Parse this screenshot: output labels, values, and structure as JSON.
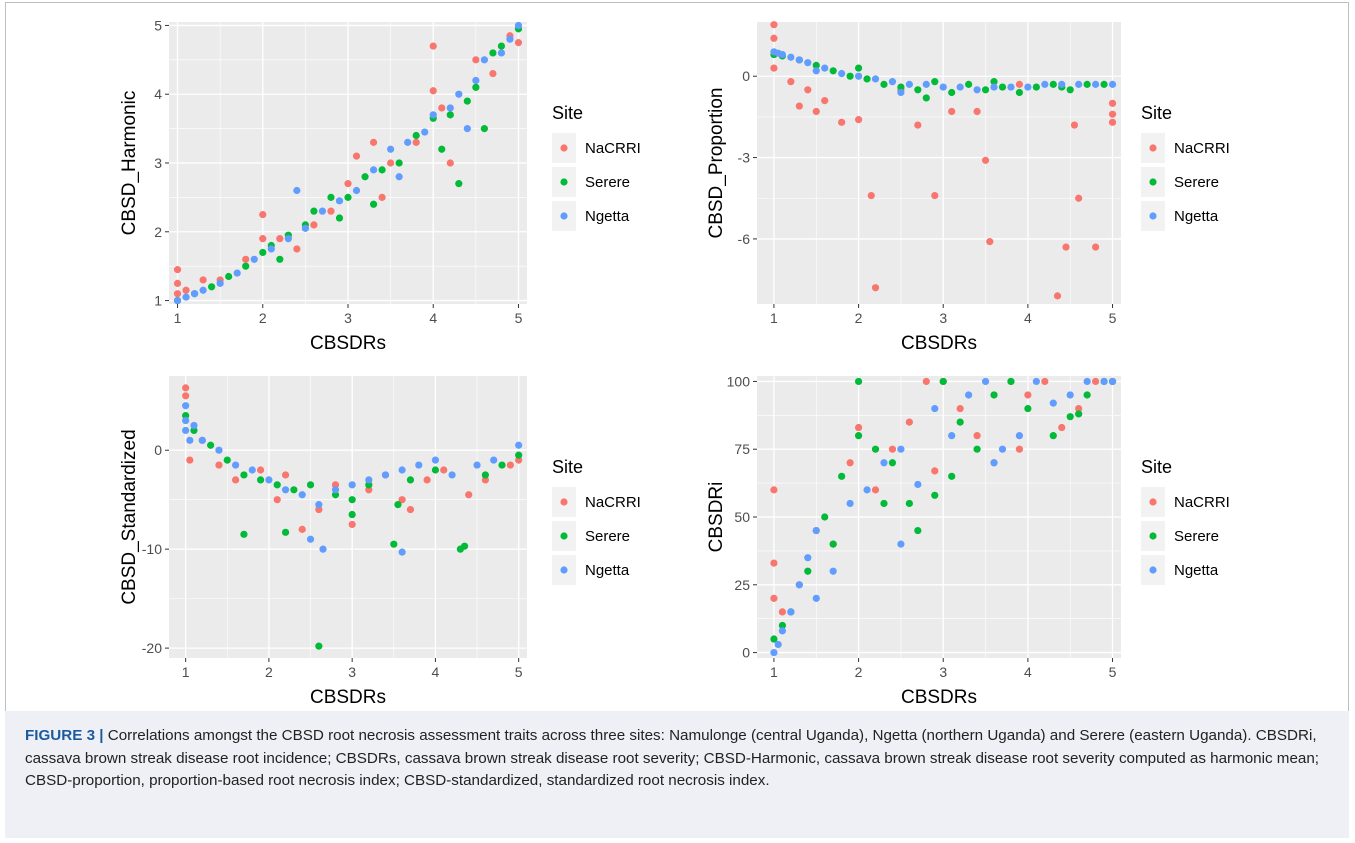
{
  "caption": {
    "label": "FIGURE 3 |",
    "text": "Correlations amongst the CBSD root necrosis assessment traits across three sites: Namulonge (central Uganda), Ngetta (northern Uganda) and Serere (eastern Uganda). CBSDRi, cassava brown streak disease root incidence; CBSDRs, cassava brown streak disease root severity; CBSD-Harmonic, cassava brown streak disease root severity computed as harmonic mean; CBSD-proportion, proportion-based root necrosis index; CBSD-standardized, standardized root necrosis index."
  },
  "colors": {
    "NaCRRI": "#F8766D",
    "Serere": "#00BA38",
    "Ngetta": "#619CFF",
    "panel_bg": "#EBEBEB",
    "grid": "#FFFFFF"
  },
  "chart_data": [
    {
      "type": "scatter",
      "xlabel": "CBSDRs",
      "ylabel": "CBSD_Harmonic",
      "xlim": [
        0.9,
        5.1
      ],
      "ylim": [
        0.95,
        5.05
      ],
      "xticks": [
        1,
        2,
        3,
        4,
        5
      ],
      "yticks": [
        1,
        2,
        3,
        4,
        5
      ],
      "legend": {
        "title": "Site",
        "position": "right",
        "entries": [
          "NaCRRI",
          "Serere",
          "Ngetta"
        ]
      },
      "series": [
        {
          "name": "NaCRRI",
          "x": [
            1.0,
            1.0,
            1.0,
            1.1,
            1.3,
            1.5,
            1.8,
            2.0,
            2.2,
            2.4,
            2.6,
            2.8,
            3.0,
            3.1,
            3.3,
            3.5,
            3.8,
            4.0,
            4.0,
            4.2,
            4.5,
            4.7,
            4.9,
            5.0,
            2.0,
            3.4,
            4.1
          ],
          "y": [
            1.45,
            1.25,
            1.1,
            1.15,
            1.3,
            1.3,
            1.6,
            2.25,
            1.9,
            1.75,
            2.1,
            2.3,
            2.7,
            3.1,
            3.3,
            3.0,
            3.3,
            4.7,
            4.05,
            3.0,
            4.5,
            4.3,
            4.85,
            4.75,
            1.9,
            2.5,
            3.8
          ]
        },
        {
          "name": "Serere",
          "x": [
            1.0,
            1.2,
            1.4,
            1.6,
            1.8,
            2.0,
            2.1,
            2.3,
            2.5,
            2.6,
            2.8,
            3.0,
            3.2,
            3.4,
            3.6,
            3.8,
            4.0,
            4.1,
            4.3,
            4.4,
            4.5,
            4.6,
            4.7,
            4.8,
            5.0,
            2.2,
            2.9,
            3.3,
            4.2
          ],
          "y": [
            1.0,
            1.1,
            1.2,
            1.35,
            1.5,
            1.7,
            1.8,
            1.95,
            2.1,
            2.3,
            2.5,
            2.5,
            2.8,
            2.9,
            3.0,
            3.4,
            3.65,
            3.2,
            2.7,
            3.9,
            4.1,
            3.5,
            4.6,
            4.7,
            4.95,
            1.6,
            2.2,
            2.4,
            3.7
          ]
        },
        {
          "name": "Ngetta",
          "x": [
            1.0,
            1.1,
            1.2,
            1.3,
            1.5,
            1.7,
            1.9,
            2.1,
            2.3,
            2.5,
            2.7,
            2.9,
            3.1,
            3.3,
            3.5,
            3.7,
            3.9,
            4.0,
            4.2,
            4.3,
            4.5,
            4.6,
            4.8,
            4.9,
            5.0,
            2.4,
            3.6,
            4.4
          ],
          "y": [
            1.0,
            1.05,
            1.1,
            1.15,
            1.25,
            1.4,
            1.6,
            1.75,
            1.9,
            2.05,
            2.3,
            2.45,
            2.6,
            2.9,
            3.2,
            3.3,
            3.45,
            3.7,
            3.8,
            4.0,
            4.2,
            4.5,
            4.6,
            4.8,
            5.0,
            2.6,
            2.8,
            3.5
          ]
        }
      ]
    },
    {
      "type": "scatter",
      "xlabel": "CBSDRs",
      "ylabel": "CBSD_Proportion",
      "xlim": [
        0.8,
        5.1
      ],
      "ylim": [
        -8.4,
        2.0
      ],
      "xticks": [
        1,
        2,
        3,
        4,
        5
      ],
      "yticks": [
        0,
        -3,
        -6
      ],
      "legend": {
        "title": "Site",
        "position": "right",
        "entries": [
          "NaCRRI",
          "Serere",
          "Ngetta"
        ]
      },
      "series": [
        {
          "name": "NaCRRI",
          "x": [
            1.0,
            1.0,
            1.0,
            1.2,
            1.3,
            1.4,
            1.5,
            1.6,
            1.8,
            2.0,
            2.15,
            2.2,
            2.7,
            2.9,
            3.1,
            3.4,
            3.5,
            3.55,
            4.35,
            4.45,
            4.55,
            4.6,
            4.8,
            5.0,
            5.0,
            5.0,
            2.5,
            3.9
          ],
          "y": [
            1.9,
            1.4,
            0.3,
            -0.2,
            -1.1,
            -0.5,
            -1.3,
            -0.9,
            -1.7,
            -1.6,
            -4.4,
            -7.8,
            -1.8,
            -4.4,
            -1.3,
            -1.3,
            -3.1,
            -6.1,
            -8.1,
            -6.3,
            -1.8,
            -4.5,
            -6.3,
            -1.4,
            -1.7,
            -1.0,
            -0.5,
            -0.3
          ]
        },
        {
          "name": "Serere",
          "x": [
            1.0,
            1.1,
            1.3,
            1.5,
            1.7,
            1.9,
            2.1,
            2.3,
            2.5,
            2.7,
            2.9,
            3.1,
            3.3,
            3.5,
            3.7,
            3.9,
            4.1,
            4.3,
            4.5,
            4.7,
            4.9,
            2.0,
            2.8,
            3.6,
            4.4
          ],
          "y": [
            0.8,
            0.75,
            0.6,
            0.4,
            0.2,
            0.0,
            -0.1,
            -0.3,
            -0.4,
            -0.5,
            -0.2,
            -0.6,
            -0.3,
            -0.5,
            -0.4,
            -0.6,
            -0.4,
            -0.3,
            -0.5,
            -0.3,
            -0.3,
            0.3,
            -0.8,
            -0.2,
            -0.4
          ]
        },
        {
          "name": "Ngetta",
          "x": [
            1.0,
            1.05,
            1.1,
            1.2,
            1.3,
            1.4,
            1.6,
            1.8,
            2.0,
            2.2,
            2.4,
            2.6,
            2.8,
            3.0,
            3.2,
            3.4,
            3.6,
            3.8,
            4.0,
            4.2,
            4.4,
            4.6,
            4.8,
            5.0,
            1.5,
            2.5
          ],
          "y": [
            0.9,
            0.85,
            0.8,
            0.7,
            0.6,
            0.5,
            0.3,
            0.1,
            0.0,
            -0.1,
            -0.2,
            -0.3,
            -0.3,
            -0.4,
            -0.4,
            -0.5,
            -0.4,
            -0.4,
            -0.4,
            -0.3,
            -0.3,
            -0.3,
            -0.3,
            -0.3,
            0.2,
            -0.6
          ]
        }
      ]
    },
    {
      "type": "scatter",
      "xlabel": "CBSDRs",
      "ylabel": "CBSD_Standardized",
      "xlim": [
        0.8,
        5.1
      ],
      "ylim": [
        -21.0,
        7.5
      ],
      "xticks": [
        1,
        2,
        3,
        4,
        5
      ],
      "yticks": [
        0,
        -10,
        -20
      ],
      "legend": {
        "title": "Site",
        "position": "right",
        "entries": [
          "NaCRRI",
          "Serere",
          "Ngetta"
        ]
      },
      "series": [
        {
          "name": "NaCRRI",
          "x": [
            1.0,
            1.0,
            1.05,
            1.2,
            1.4,
            1.6,
            1.9,
            2.1,
            2.4,
            2.6,
            2.8,
            3.0,
            3.2,
            3.4,
            3.6,
            3.9,
            4.1,
            4.4,
            4.6,
            4.9,
            5.0,
            2.2,
            3.7
          ],
          "y": [
            6.3,
            5.5,
            -1.0,
            1.0,
            -1.5,
            -3.0,
            -2.0,
            -5.0,
            -8.0,
            -6.0,
            -3.5,
            -7.5,
            -4.0,
            -2.5,
            -5.0,
            -3.0,
            -2.0,
            -4.5,
            -3.0,
            -1.5,
            -1.0,
            -2.5,
            -6.0
          ]
        },
        {
          "name": "Serere",
          "x": [
            1.0,
            1.1,
            1.3,
            1.5,
            1.7,
            1.9,
            2.1,
            2.3,
            2.5,
            2.6,
            2.8,
            3.0,
            3.2,
            3.5,
            3.7,
            4.0,
            4.3,
            4.35,
            4.6,
            4.8,
            5.0,
            1.7,
            2.2,
            3.0,
            3.55
          ],
          "y": [
            3.5,
            2.0,
            0.5,
            -1.0,
            -2.5,
            -3.0,
            -3.5,
            -4.0,
            -3.5,
            -19.8,
            -4.5,
            -5.0,
            -3.5,
            -9.5,
            -3.0,
            -2.0,
            -10.0,
            -9.7,
            -2.5,
            -1.5,
            -0.5,
            -8.5,
            -8.3,
            -6.5,
            -5.5
          ]
        },
        {
          "name": "Ngetta",
          "x": [
            1.0,
            1.0,
            1.0,
            1.05,
            1.1,
            1.2,
            1.4,
            1.6,
            1.8,
            2.0,
            2.2,
            2.4,
            2.6,
            2.8,
            3.0,
            3.2,
            3.4,
            3.6,
            3.8,
            4.0,
            4.2,
            4.5,
            4.7,
            5.0,
            2.5,
            2.65,
            3.6
          ],
          "y": [
            4.5,
            3.0,
            2.0,
            1.0,
            2.5,
            1.0,
            0.0,
            -1.5,
            -2.0,
            -3.0,
            -4.0,
            -4.5,
            -5.5,
            -4.0,
            -3.5,
            -3.0,
            -2.5,
            -2.0,
            -1.5,
            -1.0,
            -2.5,
            -1.5,
            -1.0,
            0.5,
            -9.0,
            -10.0,
            -10.3
          ]
        }
      ]
    },
    {
      "type": "scatter",
      "xlabel": "CBSDRs",
      "ylabel": "CBSDRi",
      "xlim": [
        0.8,
        5.1
      ],
      "ylim": [
        -2,
        102
      ],
      "xticks": [
        1,
        2,
        3,
        4,
        5
      ],
      "yticks": [
        0,
        25,
        50,
        75,
        100
      ],
      "legend": {
        "title": "Site",
        "position": "right",
        "entries": [
          "NaCRRI",
          "Serere",
          "Ngetta"
        ]
      },
      "series": [
        {
          "name": "NaCRRI",
          "x": [
            1.0,
            1.0,
            1.0,
            1.1,
            1.3,
            1.5,
            1.7,
            1.9,
            2.0,
            2.2,
            2.4,
            2.6,
            2.8,
            3.0,
            3.2,
            3.4,
            3.6,
            3.8,
            4.0,
            4.2,
            4.4,
            4.6,
            4.8,
            5.0,
            2.9,
            3.9
          ],
          "y": [
            60,
            33,
            20,
            15,
            25,
            45,
            40,
            70,
            83,
            60,
            75,
            85,
            100,
            100,
            90,
            80,
            70,
            100,
            95,
            100,
            83,
            90,
            100,
            100,
            67,
            75
          ]
        },
        {
          "name": "Serere",
          "x": [
            1.0,
            1.1,
            1.2,
            1.4,
            1.6,
            1.8,
            2.0,
            2.0,
            2.2,
            2.4,
            2.6,
            2.7,
            2.9,
            3.0,
            3.2,
            3.4,
            3.6,
            3.8,
            4.0,
            4.3,
            4.5,
            4.7,
            4.9,
            5.0,
            1.7,
            2.3,
            3.1,
            4.6
          ],
          "y": [
            5,
            10,
            15,
            30,
            50,
            65,
            100,
            80,
            75,
            70,
            55,
            45,
            58,
            100,
            85,
            75,
            95,
            100,
            90,
            80,
            87,
            95,
            100,
            100,
            40,
            55,
            65,
            88
          ]
        },
        {
          "name": "Ngetta",
          "x": [
            1.0,
            1.05,
            1.1,
            1.2,
            1.3,
            1.4,
            1.5,
            1.7,
            1.9,
            2.1,
            2.3,
            2.5,
            2.7,
            2.9,
            3.1,
            3.3,
            3.5,
            3.7,
            3.9,
            4.1,
            4.3,
            4.5,
            4.7,
            4.9,
            5.0,
            1.5,
            2.5,
            3.6
          ],
          "y": [
            0,
            3,
            8,
            15,
            25,
            35,
            45,
            30,
            55,
            60,
            70,
            75,
            62,
            90,
            80,
            95,
            100,
            75,
            80,
            100,
            92,
            95,
            100,
            100,
            100,
            20,
            40,
            70
          ]
        }
      ]
    }
  ]
}
